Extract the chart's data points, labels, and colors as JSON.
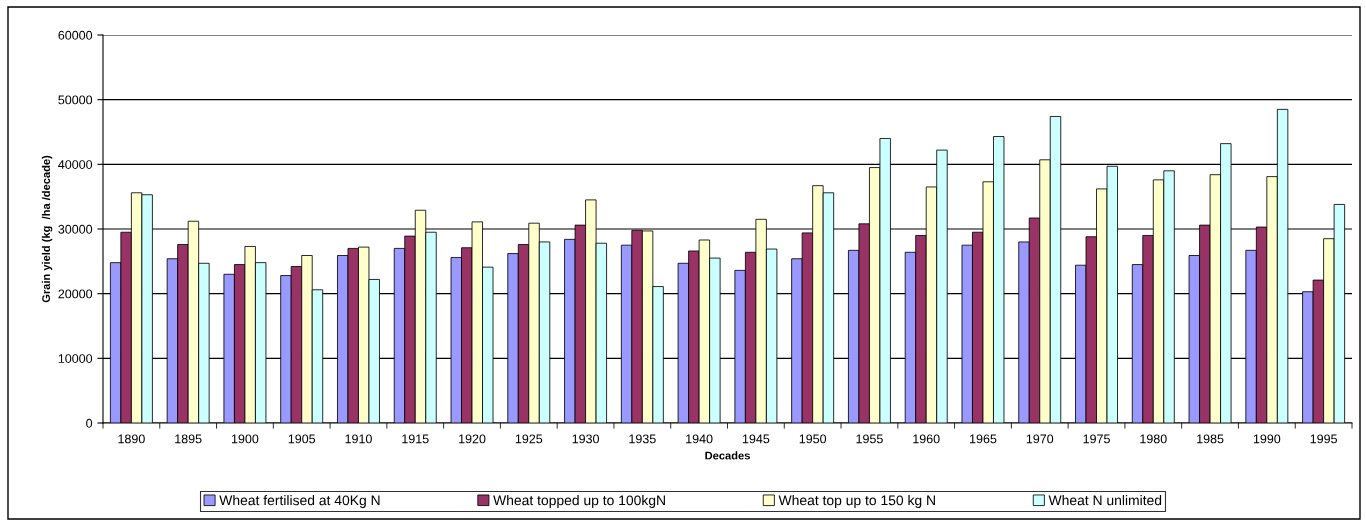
{
  "chart_data": {
    "type": "bar",
    "xlabel": "Decades",
    "ylabel": "Grain yield (kg  /ha /decade)",
    "categories": [
      "1890",
      "1895",
      "1900",
      "1905",
      "1910",
      "1915",
      "1920",
      "1925",
      "1930",
      "1935",
      "1940",
      "1945",
      "1950",
      "1955",
      "1960",
      "1965",
      "1970",
      "1975",
      "1980",
      "1985",
      "1990",
      "1995"
    ],
    "series": [
      {
        "name": "Wheat fertilised at 40Kg N",
        "color": "#9999ff",
        "values": [
          24800,
          25400,
          23000,
          22800,
          25900,
          27000,
          25600,
          26200,
          28400,
          27500,
          24700,
          23600,
          25400,
          26700,
          26400,
          27500,
          28000,
          24400,
          24500,
          25900,
          26700,
          20300
        ]
      },
      {
        "name": "Wheat topped up to 100kgN",
        "color": "#993366",
        "values": [
          29500,
          27600,
          24500,
          24200,
          27000,
          28900,
          27100,
          27600,
          30600,
          29800,
          26600,
          26400,
          29400,
          30800,
          29000,
          29500,
          31700,
          28800,
          29000,
          30600,
          30300,
          22100
        ]
      },
      {
        "name": "Wheat top up to 150 kg N",
        "color": "#ffffcc",
        "values": [
          35600,
          31200,
          27300,
          25900,
          27200,
          32900,
          31100,
          30900,
          34500,
          29700,
          28300,
          31500,
          36700,
          39500,
          36500,
          37300,
          40700,
          36200,
          37600,
          38400,
          38100,
          28500
        ]
      },
      {
        "name": "Wheat N unlimited",
        "color": "#ccffff",
        "values": [
          35300,
          24700,
          24800,
          20600,
          22200,
          29500,
          24100,
          28000,
          27800,
          21100,
          25500,
          26900,
          35600,
          44000,
          42200,
          44300,
          47400,
          39700,
          39000,
          43200,
          48500,
          33800
        ]
      }
    ],
    "ylim": [
      0,
      60000
    ],
    "yticks": [
      0,
      10000,
      20000,
      30000,
      40000,
      50000,
      60000
    ],
    "grid": "y",
    "legend": "bottom"
  }
}
